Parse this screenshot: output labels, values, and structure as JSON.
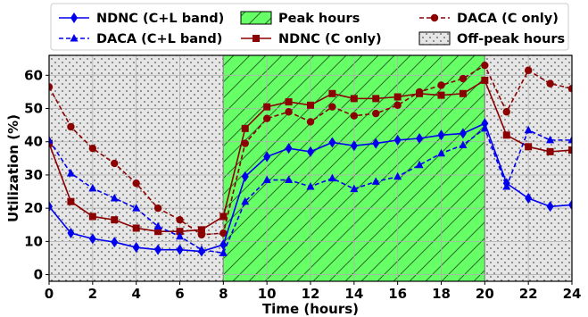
{
  "chart_data": {
    "type": "line",
    "xlabel": "Time (hours)",
    "ylabel": "Utilization (%)",
    "xlim": [
      0,
      24
    ],
    "ylim": [
      -2,
      66
    ],
    "xticks": [
      0,
      2,
      4,
      6,
      8,
      10,
      12,
      14,
      16,
      18,
      20,
      22,
      24
    ],
    "yticks": [
      0,
      10,
      20,
      30,
      40,
      50,
      60
    ],
    "grid": true,
    "legend_position": "top",
    "peak_region": {
      "label": "Peak hours",
      "start": 8,
      "end": 20,
      "color": "#66ff66"
    },
    "offpeak_regions": {
      "label": "Off-peak hours",
      "ranges": [
        [
          0,
          8
        ],
        [
          20,
          24
        ]
      ],
      "color": "#e6e6e6"
    },
    "x": [
      0,
      1,
      2,
      3,
      4,
      5,
      6,
      7,
      8,
      9,
      10,
      11,
      12,
      13,
      14,
      15,
      16,
      17,
      18,
      19,
      20,
      21,
      22,
      23,
      24
    ],
    "series": [
      {
        "name": "NDNC (C+L band)",
        "color": "#0000ee",
        "dash": "solid",
        "marker": "diamond",
        "values": [
          20.5,
          12.5,
          10.8,
          9.8,
          8.2,
          7.5,
          7.5,
          7.0,
          9.0,
          29.5,
          35.5,
          38.0,
          37.0,
          39.8,
          38.8,
          39.5,
          40.5,
          41.0,
          42.0,
          42.5,
          45.5,
          27.5,
          23.0,
          20.5,
          21.0
        ]
      },
      {
        "name": "NDNC (C only)",
        "color": "#8b0000",
        "dash": "solid",
        "marker": "square",
        "values": [
          39.5,
          22.0,
          17.5,
          16.5,
          14.0,
          13.0,
          13.0,
          13.5,
          17.5,
          44.0,
          50.5,
          52.0,
          51.0,
          54.5,
          53.0,
          53.0,
          53.5,
          54.5,
          54.0,
          54.5,
          58.5,
          42.0,
          38.5,
          37.0,
          37.5
        ]
      },
      {
        "name": "DACA (C+L band)",
        "color": "#0000ee",
        "dash": "dashed",
        "marker": "triangle",
        "values": [
          40.5,
          30.5,
          26.0,
          23.0,
          20.0,
          14.5,
          11.5,
          7.5,
          6.5,
          22.0,
          28.5,
          28.5,
          26.5,
          29.0,
          25.8,
          28.0,
          29.5,
          33.0,
          36.5,
          39.0,
          44.0,
          26.5,
          43.5,
          40.5,
          40.5
        ]
      },
      {
        "name": "DACA (C only)",
        "color": "#8b0000",
        "dash": "dashed",
        "marker": "circle",
        "values": [
          56.5,
          44.5,
          38.0,
          33.5,
          27.5,
          20.0,
          16.5,
          12.0,
          12.5,
          39.5,
          47.0,
          49.0,
          46.0,
          50.5,
          47.8,
          48.5,
          51.0,
          55.0,
          57.0,
          59.0,
          63.0,
          49.0,
          61.5,
          57.5,
          56.0
        ]
      }
    ],
    "legend": {
      "items": [
        {
          "label": "NDNC (C+L band)",
          "kind": "line",
          "series": 0
        },
        {
          "label": "DACA (C+L band)",
          "kind": "line",
          "series": 2
        },
        {
          "label": "Peak hours",
          "kind": "peak"
        },
        {
          "label": "NDNC (C only)",
          "kind": "line",
          "series": 1
        },
        {
          "label": "DACA (C only)",
          "kind": "line",
          "series": 3
        },
        {
          "label": "Off-peak hours",
          "kind": "offpeak"
        }
      ]
    }
  }
}
